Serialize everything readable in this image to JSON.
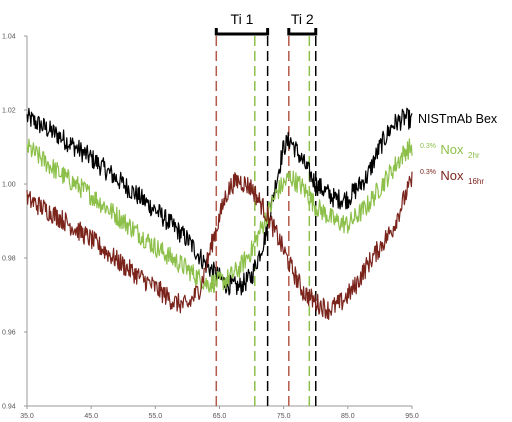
{
  "chart_data": {
    "type": "line",
    "title": "",
    "xlabel": "",
    "ylabel": "",
    "xlim": [
      35.0,
      95.0
    ],
    "ylim": [
      0.94,
      1.04
    ],
    "x_ticks": [
      "35.0",
      "45.0",
      "55.0",
      "65.0",
      "75.0",
      "85.0",
      "95.0"
    ],
    "y_ticks": [
      "0.94",
      "0.96",
      "0.98",
      "1.00",
      "1.02",
      "1.04"
    ],
    "grid": false,
    "legend_position": "right",
    "series": [
      {
        "name": "NISTmAb Bex",
        "color": "#000000",
        "points": [
          [
            35,
            1.018
          ],
          [
            40,
            1.013
          ],
          [
            45,
            1.007
          ],
          [
            50,
            1.0
          ],
          [
            55,
            0.993
          ],
          [
            60,
            0.985
          ],
          [
            63,
            0.978
          ],
          [
            66,
            0.973
          ],
          [
            68,
            0.972
          ],
          [
            70,
            0.975
          ],
          [
            72,
            0.985
          ],
          [
            74,
            1.002
          ],
          [
            75,
            1.01
          ],
          [
            76,
            1.012
          ],
          [
            78,
            1.006
          ],
          [
            80,
            1.0
          ],
          [
            83,
            0.996
          ],
          [
            85,
            0.996
          ],
          [
            88,
            1.002
          ],
          [
            90,
            1.01
          ],
          [
            92,
            1.016
          ],
          [
            94,
            1.018
          ],
          [
            95,
            1.017
          ]
        ]
      },
      {
        "name_main": "Nox",
        "name_prefix": "0.3%",
        "name_sub": "2hr",
        "color": "#8dc04a",
        "points": [
          [
            35,
            1.01
          ],
          [
            40,
            1.003
          ],
          [
            45,
            0.997
          ],
          [
            50,
            0.99
          ],
          [
            55,
            0.983
          ],
          [
            60,
            0.977
          ],
          [
            63,
            0.973
          ],
          [
            66,
            0.974
          ],
          [
            68,
            0.977
          ],
          [
            70,
            0.982
          ],
          [
            72,
            0.99
          ],
          [
            74,
            0.998
          ],
          [
            76,
            1.002
          ],
          [
            78,
            0.999
          ],
          [
            80,
            0.994
          ],
          [
            83,
            0.99
          ],
          [
            85,
            0.989
          ],
          [
            88,
            0.994
          ],
          [
            90,
            0.999
          ],
          [
            92,
            1.004
          ],
          [
            94,
            1.009
          ],
          [
            95,
            1.01
          ]
        ]
      },
      {
        "name_main": "Nox",
        "name_prefix": "0.3%",
        "name_sub": "16hr",
        "color": "#7b241c",
        "points": [
          [
            35,
            0.996
          ],
          [
            40,
            0.991
          ],
          [
            45,
            0.985
          ],
          [
            50,
            0.978
          ],
          [
            55,
            0.972
          ],
          [
            58,
            0.968
          ],
          [
            60,
            0.967
          ],
          [
            62,
            0.972
          ],
          [
            64,
            0.985
          ],
          [
            66,
            0.997
          ],
          [
            67,
            1.0
          ],
          [
            68,
            1.001
          ],
          [
            70,
            0.999
          ],
          [
            72,
            0.993
          ],
          [
            74,
            0.986
          ],
          [
            76,
            0.978
          ],
          [
            78,
            0.971
          ],
          [
            80,
            0.968
          ],
          [
            82,
            0.966
          ],
          [
            84,
            0.968
          ],
          [
            86,
            0.972
          ],
          [
            88,
            0.978
          ],
          [
            90,
            0.983
          ],
          [
            92,
            0.988
          ],
          [
            94,
            0.997
          ],
          [
            95,
            1.001
          ]
        ]
      }
    ],
    "annotations": {
      "ranges": [
        {
          "label": "Ti 1",
          "start": 64.5,
          "end": 72.5
        },
        {
          "label": "Ti 2",
          "start": 75.8,
          "end": 80.0
        }
      ],
      "vlines": [
        {
          "x": 64.5,
          "color": "#b55a4a"
        },
        {
          "x": 70.5,
          "color": "#8dc04a"
        },
        {
          "x": 72.5,
          "color": "#000000"
        },
        {
          "x": 75.8,
          "color": "#b55a4a"
        },
        {
          "x": 79.0,
          "color": "#8dc04a"
        },
        {
          "x": 80.0,
          "color": "#000000"
        }
      ]
    }
  }
}
